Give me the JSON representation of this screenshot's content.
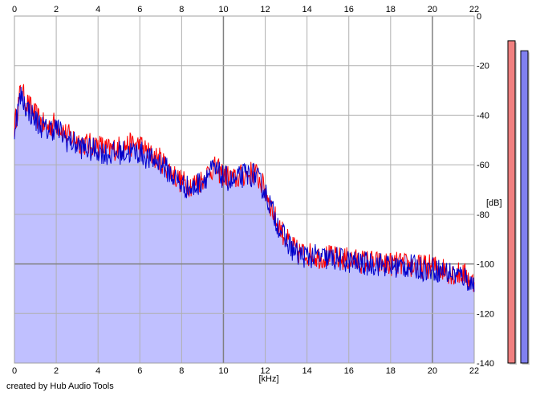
{
  "credit": "created by Hub Audio Tools",
  "chart_data": {
    "type": "area",
    "x_unit_label": "[kHz]",
    "y_unit_label": "[dB]",
    "xlim": [
      0,
      22
    ],
    "ylim": [
      -140,
      0
    ],
    "x_ticks": [
      0,
      2,
      4,
      6,
      8,
      10,
      12,
      14,
      16,
      18,
      20,
      22
    ],
    "y_ticks": [
      0,
      -20,
      -40,
      -60,
      -80,
      -100,
      -120,
      -140
    ],
    "grid": true,
    "colors": {
      "left_channel": "#ff0000",
      "right_channel": "#0000cc",
      "fill": "#c0c0ff",
      "grid": "#b0b0b0",
      "major_grid": "#808080",
      "meter_left": "#f08080",
      "meter_right": "#8080f0"
    },
    "series": [
      {
        "channel": "left",
        "x": [
          0,
          0.3,
          0.6,
          1,
          1.5,
          2,
          2.5,
          3,
          3.5,
          4,
          4.5,
          5,
          5.5,
          6,
          6.5,
          7,
          7.5,
          8,
          8.5,
          9,
          9.5,
          10,
          10.5,
          11,
          11.5,
          12,
          12.5,
          13,
          13.5,
          14,
          14.5,
          15,
          15.5,
          16,
          16.5,
          17,
          17.5,
          18,
          18.5,
          19,
          19.5,
          20,
          20.5,
          21,
          21.5,
          22
        ],
        "y": [
          -45,
          -30,
          -35,
          -40,
          -45,
          -43,
          -48,
          -50,
          -52,
          -52,
          -54,
          -53,
          -52,
          -52,
          -56,
          -58,
          -63,
          -67,
          -68,
          -66,
          -61,
          -64,
          -66,
          -64,
          -63,
          -70,
          -82,
          -90,
          -95,
          -96,
          -97,
          -97,
          -98,
          -98,
          -99,
          -99,
          -100,
          -100,
          -100,
          -101,
          -101,
          -101,
          -102,
          -104,
          -104,
          -108
        ]
      },
      {
        "channel": "right",
        "x": [
          0,
          0.3,
          0.6,
          1,
          1.5,
          2,
          2.5,
          3,
          3.5,
          4,
          4.5,
          5,
          5.5,
          6,
          6.5,
          7,
          7.5,
          8,
          8.5,
          9,
          9.5,
          10,
          10.5,
          11,
          11.5,
          12,
          12.5,
          13,
          13.5,
          14,
          14.5,
          15,
          15.5,
          16,
          16.5,
          17,
          17.5,
          18,
          18.5,
          19,
          19.5,
          20,
          20.5,
          21,
          21.5,
          22
        ],
        "y": [
          -45,
          -32,
          -37,
          -42,
          -46,
          -45,
          -50,
          -52,
          -54,
          -54,
          -56,
          -55,
          -55,
          -55,
          -58,
          -59,
          -64,
          -68,
          -70,
          -66,
          -62,
          -65,
          -67,
          -64,
          -64,
          -71,
          -82,
          -91,
          -96,
          -97,
          -97,
          -98,
          -98,
          -99,
          -100,
          -100,
          -100,
          -101,
          -101,
          -101,
          -102,
          -102,
          -103,
          -104,
          -105,
          -109
        ]
      }
    ],
    "meters": [
      {
        "channel": "left",
        "level_db": -10
      },
      {
        "channel": "right",
        "level_db": -14
      }
    ]
  }
}
